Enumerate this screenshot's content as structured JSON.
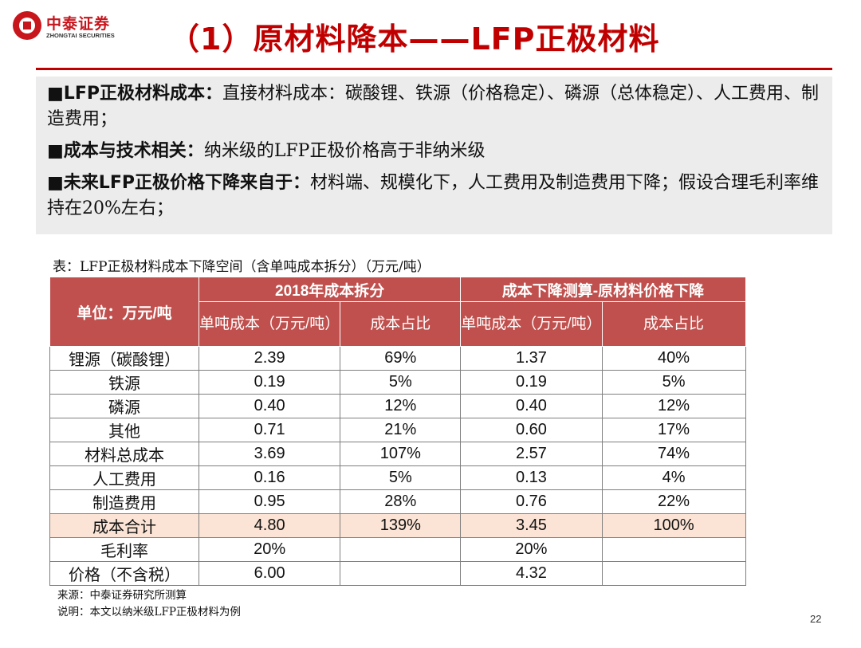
{
  "logo": {
    "name_cn": "中泰证券",
    "name_en": "ZHONGTAI SECURITIES"
  },
  "title": "（1）原材料降本——LFP正极材料",
  "colors": {
    "accent": "#c00000",
    "header_bg": "#c0504d",
    "highlight_row": "#fbe4d5",
    "box_bg": "#ececec"
  },
  "bullets": [
    {
      "marker": "■",
      "lead": "LFP正极材料成本：",
      "body": "直接材料成本：碳酸锂、铁源（价格稳定）、磷源（总体稳定）、人工费用、制造费用；"
    },
    {
      "marker": "■",
      "lead": "成本与技术相关：",
      "body": "纳米级的LFP正极价格高于非纳米级"
    },
    {
      "marker": "■",
      "lead": "未来LFP正极价格下降来自于：",
      "body": "材料端、规模化下，人工费用及制造费用下降；假设合理毛利率维持在20%左右；"
    }
  ],
  "table": {
    "caption": "表：LFP正极材料成本下降空间（含单吨成本拆分）（万元/吨）",
    "unit_header": "单位：万元/吨",
    "group_headers": [
      "2018年成本拆分",
      "成本下降测算-原材料价格下降"
    ],
    "sub_headers": [
      "单吨成本（万元/吨）",
      "成本占比",
      "单吨成本（万元/吨）",
      "成本占比"
    ],
    "rows": [
      [
        "锂源（碳酸锂）",
        "2.39",
        "69%",
        "1.37",
        "40%"
      ],
      [
        "铁源",
        "0.19",
        "5%",
        "0.19",
        "5%"
      ],
      [
        "磷源",
        "0.40",
        "12%",
        "0.40",
        "12%"
      ],
      [
        "其他",
        "0.71",
        "21%",
        "0.60",
        "17%"
      ],
      [
        "材料总成本",
        "3.69",
        "107%",
        "2.57",
        "74%"
      ],
      [
        "人工费用",
        "0.16",
        "5%",
        "0.13",
        "4%"
      ],
      [
        "制造费用",
        "0.95",
        "28%",
        "0.76",
        "22%"
      ],
      [
        "成本合计",
        "4.80",
        "139%",
        "3.45",
        "100%"
      ],
      [
        "毛利率",
        "20%",
        "",
        "20%",
        ""
      ],
      [
        "价格（不含税）",
        "6.00",
        "",
        "4.32",
        ""
      ]
    ]
  },
  "notes": {
    "source": "来源：中泰证券研究所测算",
    "explanation": "说明：本文以纳米级LFP正极材料为例"
  },
  "page_number": "22"
}
